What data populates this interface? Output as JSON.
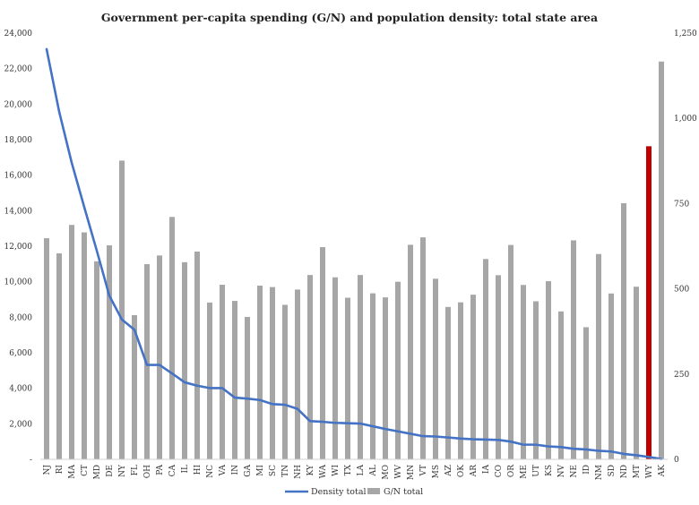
{
  "chart_data": {
    "type": "bar+line",
    "title": "Government per-capita spending (G/N) and population density: total state area",
    "categories": [
      "NJ",
      "RI",
      "MA",
      "CT",
      "MD",
      "DE",
      "NY",
      "FL",
      "OH",
      "PA",
      "CA",
      "IL",
      "HI",
      "NC",
      "VA",
      "IN",
      "GA",
      "MI",
      "SC",
      "TN",
      "NH",
      "KY",
      "WA",
      "WI",
      "TX",
      "LA",
      "AL",
      "MO",
      "WV",
      "MN",
      "VT",
      "MS",
      "AZ",
      "OK",
      "AR",
      "IA",
      "CO",
      "OR",
      "ME",
      "UT",
      "KS",
      "NV",
      "NE",
      "ID",
      "NM",
      "SD",
      "ND",
      "MT",
      "WY",
      "AK"
    ],
    "left_axis": {
      "min": 0,
      "max": 24000,
      "step": 2000,
      "tick_labels": [
        "-",
        "2,000",
        "4,000",
        "6,000",
        "8,000",
        "10,000",
        "12,000",
        "14,000",
        "16,000",
        "18,000",
        "20,000",
        "22,000",
        "24,000"
      ]
    },
    "right_axis": {
      "min": 0,
      "max": 1250,
      "step": 250,
      "tick_labels": [
        "0",
        "250",
        "500",
        "750",
        "1,000",
        "1,250"
      ]
    },
    "series": [
      {
        "name": "Density total",
        "kind": "line",
        "axis": "right",
        "color": "#4472C4",
        "values": [
          1203,
          1020,
          870,
          740,
          612,
          480,
          410,
          380,
          277,
          277,
          252,
          226,
          216,
          209,
          209,
          181,
          178,
          174,
          162,
          160,
          148,
          112,
          110,
          107,
          106,
          105,
          97,
          89,
          82,
          75,
          68,
          67,
          64,
          61,
          59,
          58,
          57,
          52,
          43,
          43,
          38,
          36,
          31,
          29,
          25,
          23,
          16,
          12,
          7,
          1
        ]
      },
      {
        "name": "G/N total",
        "kind": "bar",
        "axis": "left",
        "color": "#A6A6A6",
        "highlight": {
          "category": "WY",
          "color": "#C00000"
        },
        "values": [
          12450,
          11600,
          13200,
          12780,
          11150,
          12050,
          16820,
          8120,
          10990,
          11480,
          13650,
          11100,
          11700,
          8830,
          9830,
          8920,
          8020,
          9780,
          9700,
          8700,
          9560,
          10380,
          11950,
          10250,
          9100,
          10380,
          9350,
          9120,
          10000,
          12080,
          12500,
          10170,
          8580,
          8840,
          9270,
          11280,
          10370,
          12070,
          9820,
          8900,
          10030,
          8330,
          12330,
          7440,
          11560,
          9340,
          14420,
          9720,
          17630,
          22400
        ]
      }
    ],
    "legend": {
      "position": "bottom",
      "entries": [
        "Density total",
        "G/N total"
      ]
    },
    "grid": false
  }
}
